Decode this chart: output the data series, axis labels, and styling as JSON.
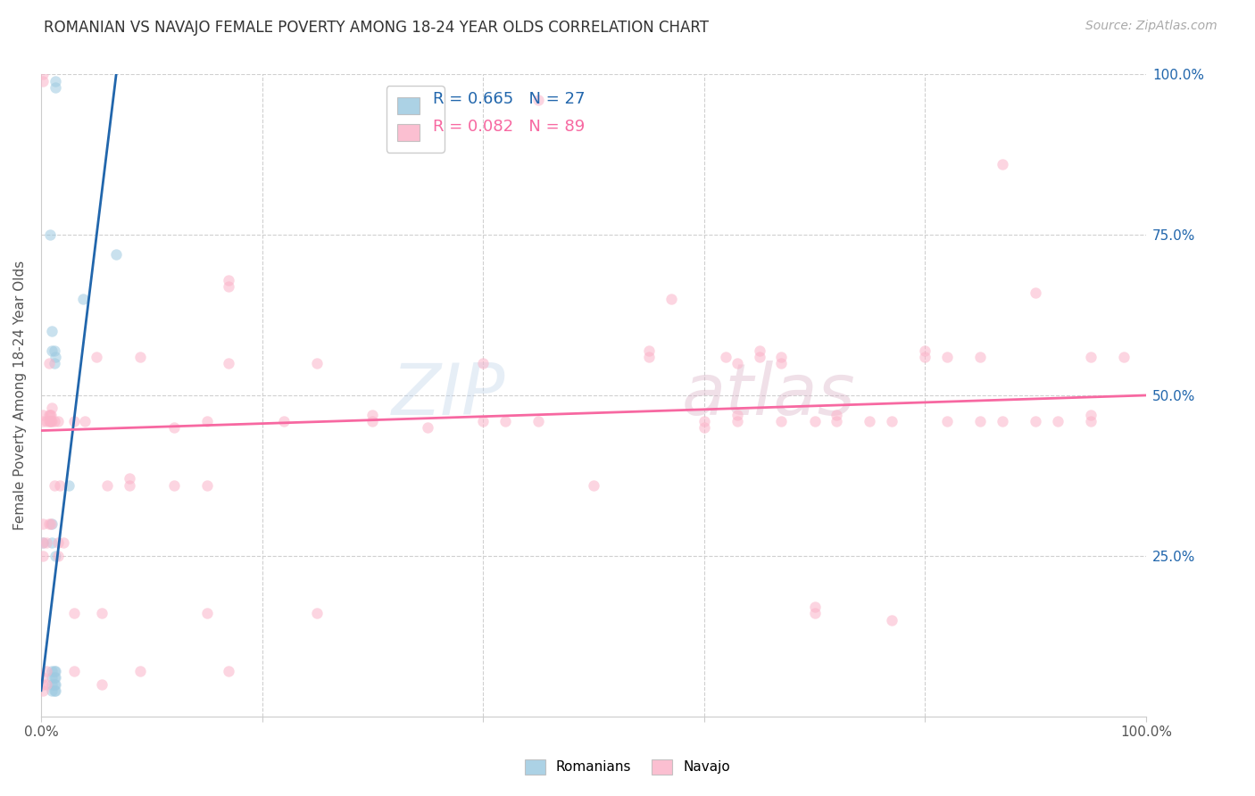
{
  "title": "ROMANIAN VS NAVAJO FEMALE POVERTY AMONG 18-24 YEAR OLDS CORRELATION CHART",
  "source": "Source: ZipAtlas.com",
  "ylabel": "Female Poverty Among 18-24 Year Olds",
  "xlim": [
    0,
    1.0
  ],
  "ylim": [
    0,
    1.0
  ],
  "background_color": "#ffffff",
  "grid_color": "#d0d0d0",
  "romanian_color": "#9ecae1",
  "navajo_color": "#fbb4c9",
  "romanian_line_color": "#2166ac",
  "navajo_line_color": "#f768a1",
  "legend_blue_color": "#2166ac",
  "legend_pink_color": "#f768a1",
  "title_fontsize": 12,
  "label_fontsize": 11,
  "tick_fontsize": 11,
  "source_fontsize": 10,
  "marker_size": 80,
  "marker_alpha": 0.55,
  "romanian_x": [
    0.002,
    0.008,
    0.01,
    0.01,
    0.01,
    0.01,
    0.01,
    0.01,
    0.01,
    0.01,
    0.012,
    0.012,
    0.012,
    0.012,
    0.012,
    0.012,
    0.013,
    0.013,
    0.013,
    0.013,
    0.013,
    0.013,
    0.013,
    0.013,
    0.025,
    0.038,
    0.068
  ],
  "romanian_y": [
    0.27,
    0.75,
    0.04,
    0.05,
    0.06,
    0.07,
    0.27,
    0.3,
    0.57,
    0.6,
    0.04,
    0.05,
    0.06,
    0.07,
    0.55,
    0.57,
    0.04,
    0.05,
    0.06,
    0.07,
    0.25,
    0.56,
    0.98,
    0.99,
    0.36,
    0.65,
    0.72
  ],
  "navajo_x": [
    0.002,
    0.002,
    0.002,
    0.002,
    0.002,
    0.002,
    0.002,
    0.002,
    0.002,
    0.002,
    0.005,
    0.005,
    0.005,
    0.005,
    0.007,
    0.007,
    0.007,
    0.007,
    0.008,
    0.008,
    0.009,
    0.009,
    0.009,
    0.01,
    0.01,
    0.012,
    0.012,
    0.015,
    0.015,
    0.015,
    0.017,
    0.02,
    0.03,
    0.03,
    0.03,
    0.04,
    0.05,
    0.055,
    0.055,
    0.06,
    0.08,
    0.08,
    0.09,
    0.09,
    0.12,
    0.12,
    0.15,
    0.15,
    0.15,
    0.17,
    0.17,
    0.17,
    0.17,
    0.22,
    0.25,
    0.25,
    0.3,
    0.3,
    0.35,
    0.4,
    0.4,
    0.42,
    0.45,
    0.45,
    0.5,
    0.55,
    0.55,
    0.57,
    0.6,
    0.6,
    0.62,
    0.63,
    0.63,
    0.63,
    0.65,
    0.65,
    0.67,
    0.67,
    0.67,
    0.7,
    0.7,
    0.7,
    0.72,
    0.72,
    0.75,
    0.77,
    0.77,
    0.8,
    0.8,
    0.82,
    0.82,
    0.85,
    0.85,
    0.87,
    0.87,
    0.9,
    0.9,
    0.92,
    0.95,
    0.95,
    0.95,
    0.98
  ],
  "navajo_y": [
    0.04,
    0.05,
    0.06,
    0.25,
    0.27,
    0.3,
    0.46,
    0.47,
    0.99,
    1.0,
    0.05,
    0.07,
    0.27,
    0.46,
    0.3,
    0.46,
    0.47,
    0.55,
    0.46,
    0.47,
    0.3,
    0.46,
    0.47,
    0.46,
    0.48,
    0.36,
    0.46,
    0.25,
    0.27,
    0.46,
    0.36,
    0.27,
    0.07,
    0.16,
    0.46,
    0.46,
    0.56,
    0.05,
    0.16,
    0.36,
    0.36,
    0.37,
    0.07,
    0.56,
    0.45,
    0.36,
    0.36,
    0.46,
    0.16,
    0.07,
    0.55,
    0.67,
    0.68,
    0.46,
    0.16,
    0.55,
    0.46,
    0.47,
    0.45,
    0.46,
    0.55,
    0.46,
    0.46,
    0.96,
    0.36,
    0.56,
    0.57,
    0.65,
    0.45,
    0.46,
    0.56,
    0.46,
    0.47,
    0.55,
    0.56,
    0.57,
    0.46,
    0.55,
    0.56,
    0.16,
    0.17,
    0.46,
    0.46,
    0.47,
    0.46,
    0.15,
    0.46,
    0.56,
    0.57,
    0.46,
    0.56,
    0.46,
    0.56,
    0.46,
    0.86,
    0.46,
    0.66,
    0.46,
    0.46,
    0.47,
    0.56,
    0.56
  ],
  "rom_line_x0": 0.0,
  "rom_line_y0": 0.04,
  "rom_line_x1": 0.068,
  "rom_line_y1": 1.0,
  "nav_line_x0": 0.0,
  "nav_line_y0": 0.445,
  "nav_line_x1": 1.0,
  "nav_line_y1": 0.5
}
